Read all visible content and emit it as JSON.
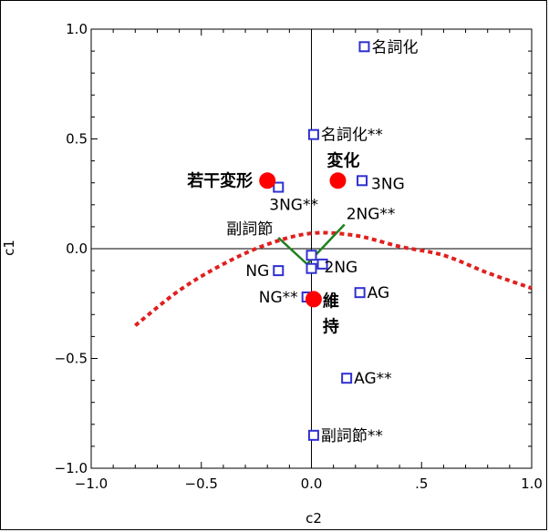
{
  "chart_data": {
    "type": "scatter",
    "xlabel": "c2",
    "ylabel": "c1",
    "xlim": [
      -1.0,
      1.0
    ],
    "ylim": [
      -1.0,
      1.0
    ],
    "x_ticks": [
      -1.0,
      -0.5,
      0.0,
      0.5,
      1.0
    ],
    "x_tick_labels": [
      "−1.0",
      "−0.5",
      "0.0",
      ".5",
      "1.0"
    ],
    "y_ticks": [
      -1.0,
      -0.5,
      0.0,
      0.5,
      1.0
    ],
    "y_tick_labels": [
      "−1.0",
      "−0.5",
      "0.0",
      "0.5",
      "1.0"
    ],
    "grid": false,
    "reference_lines": {
      "x": 0,
      "y": 0
    },
    "square_points": [
      {
        "label": "名詞化",
        "x": 0.24,
        "y": 0.92
      },
      {
        "label": "名詞化**",
        "x": 0.01,
        "y": 0.52
      },
      {
        "label": "3NG",
        "x": 0.23,
        "y": 0.31
      },
      {
        "label": "3NG**",
        "x": -0.15,
        "y": 0.28
      },
      {
        "label": "2NG",
        "x": 0.0,
        "y": -0.03
      },
      {
        "label": "",
        "x": 0.05,
        "y": -0.07
      },
      {
        "label": "",
        "x": 0.0,
        "y": -0.09
      },
      {
        "label": "NG",
        "x": -0.15,
        "y": -0.1
      },
      {
        "label": "NG**",
        "x": -0.02,
        "y": -0.22
      },
      {
        "label": "AG",
        "x": 0.22,
        "y": -0.2
      },
      {
        "label": "AG**",
        "x": 0.16,
        "y": -0.59
      },
      {
        "label": "副詞節**",
        "x": 0.01,
        "y": -0.85
      }
    ],
    "circle_points": [
      {
        "label": "若干変形",
        "x": -0.2,
        "y": 0.31
      },
      {
        "label": "変化",
        "x": 0.12,
        "y": 0.31
      },
      {
        "label": "維持",
        "x": 0.01,
        "y": -0.23
      }
    ],
    "vector_labels": [
      "副詞節",
      "2NG**"
    ],
    "vectors": [
      {
        "from": [
          -0.02,
          -0.07
        ],
        "to": [
          -0.15,
          0.05
        ]
      },
      {
        "from": [
          -0.02,
          -0.07
        ],
        "to": [
          0.15,
          0.11
        ]
      }
    ],
    "fitted_curve": {
      "style": "dotted",
      "color": "#e02020",
      "x": [
        -0.8,
        -0.6,
        -0.4,
        -0.2,
        0.0,
        0.2,
        0.4,
        0.6,
        0.8,
        1.0
      ],
      "y": [
        -0.35,
        -0.19,
        -0.07,
        0.02,
        0.07,
        0.06,
        0.01,
        -0.03,
        -0.11,
        -0.18
      ]
    },
    "colors": {
      "square": "#3030d0",
      "circle": "#ff0000",
      "curve": "#e02020",
      "vector": "#208020"
    }
  }
}
